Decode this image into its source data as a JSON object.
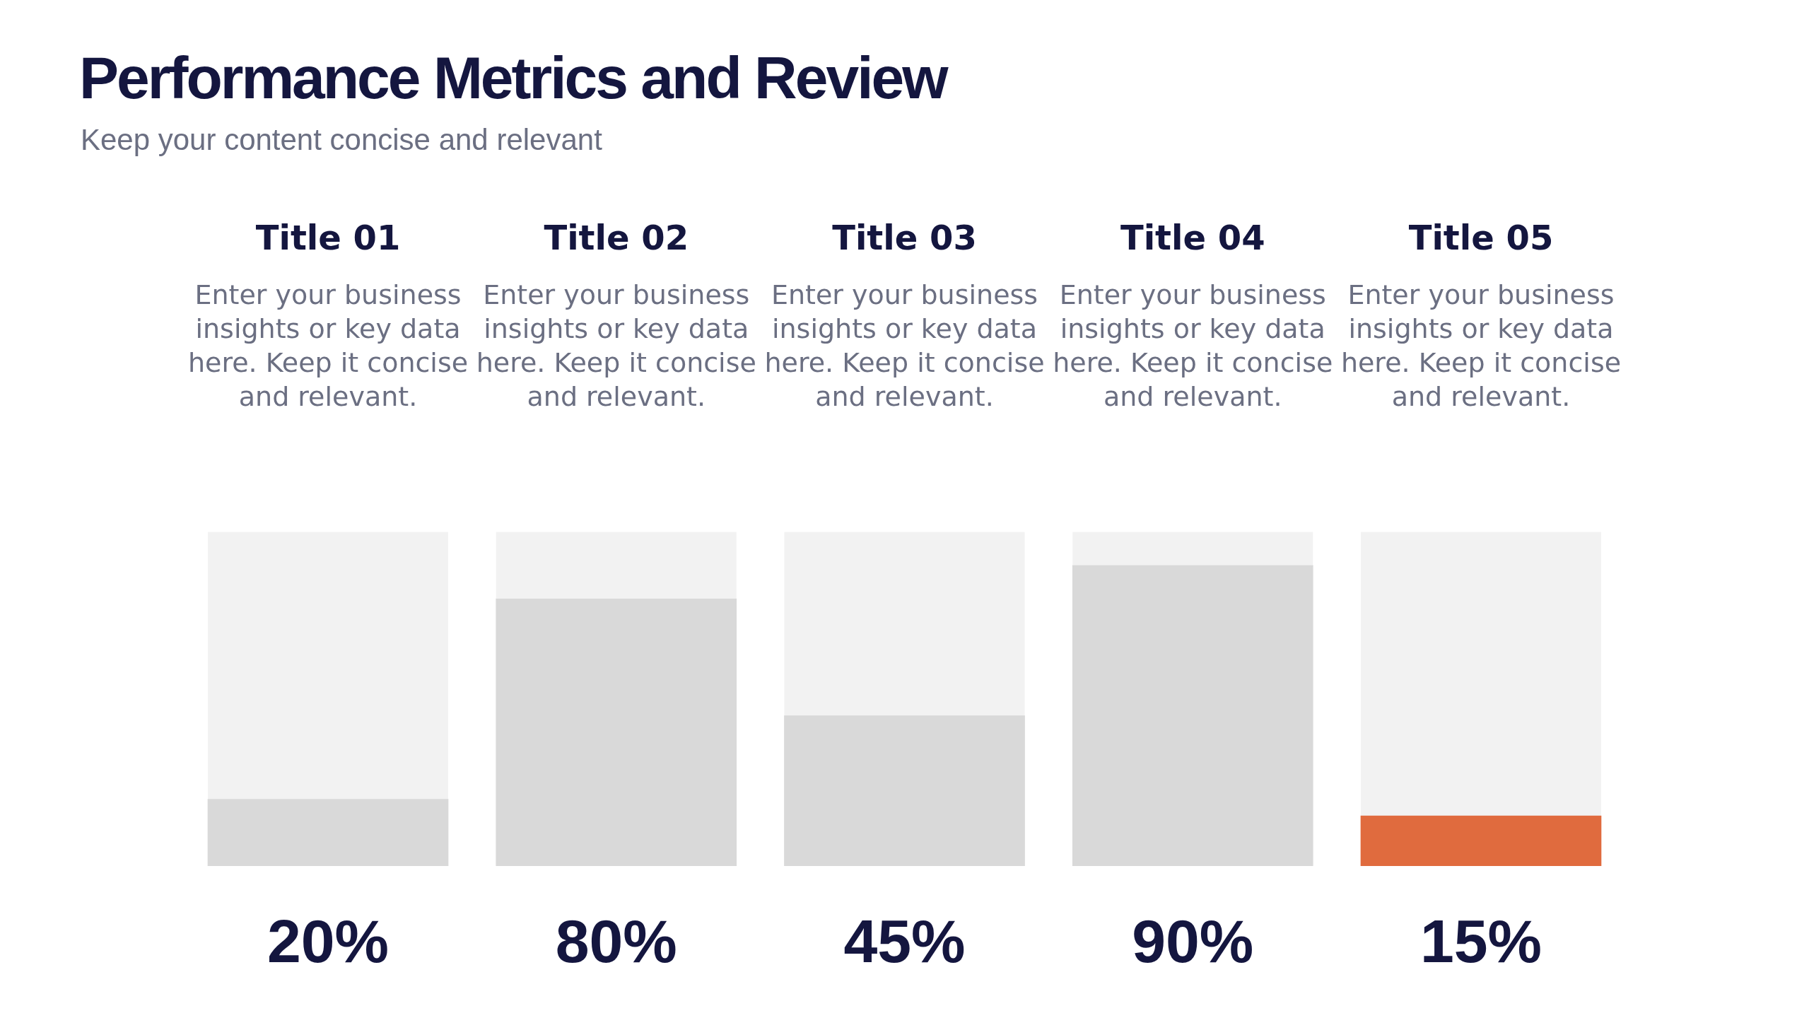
{
  "chart_data": {
    "type": "bar",
    "title": "Performance Metrics and Review",
    "subtitle": "Keep your content concise and relevant",
    "categories": [
      "Title 01",
      "Title 02",
      "Title 03",
      "Title 04",
      "Title 05"
    ],
    "values": [
      20,
      80,
      45,
      90,
      15
    ],
    "colors": [
      "#d9d9d9",
      "#d9d9d9",
      "#d9d9d9",
      "#d9d9d9",
      "#e06b3e"
    ],
    "value_labels": [
      "20%",
      "80%",
      "45%",
      "90%",
      "15%"
    ],
    "ylim": [
      0,
      100
    ],
    "tick_labels": "x",
    "annotations": [
      "Enter your business insights or key data here. Keep it concise and relevant.",
      "Enter your business insights or key data here. Keep it concise and relevant.",
      "Enter your business insights or key data here. Keep it concise and relevant.",
      "Enter your business insights or key data here. Keep it concise and relevant.",
      "Enter your business insights or key data here. Keep it concise and relevant."
    ]
  }
}
